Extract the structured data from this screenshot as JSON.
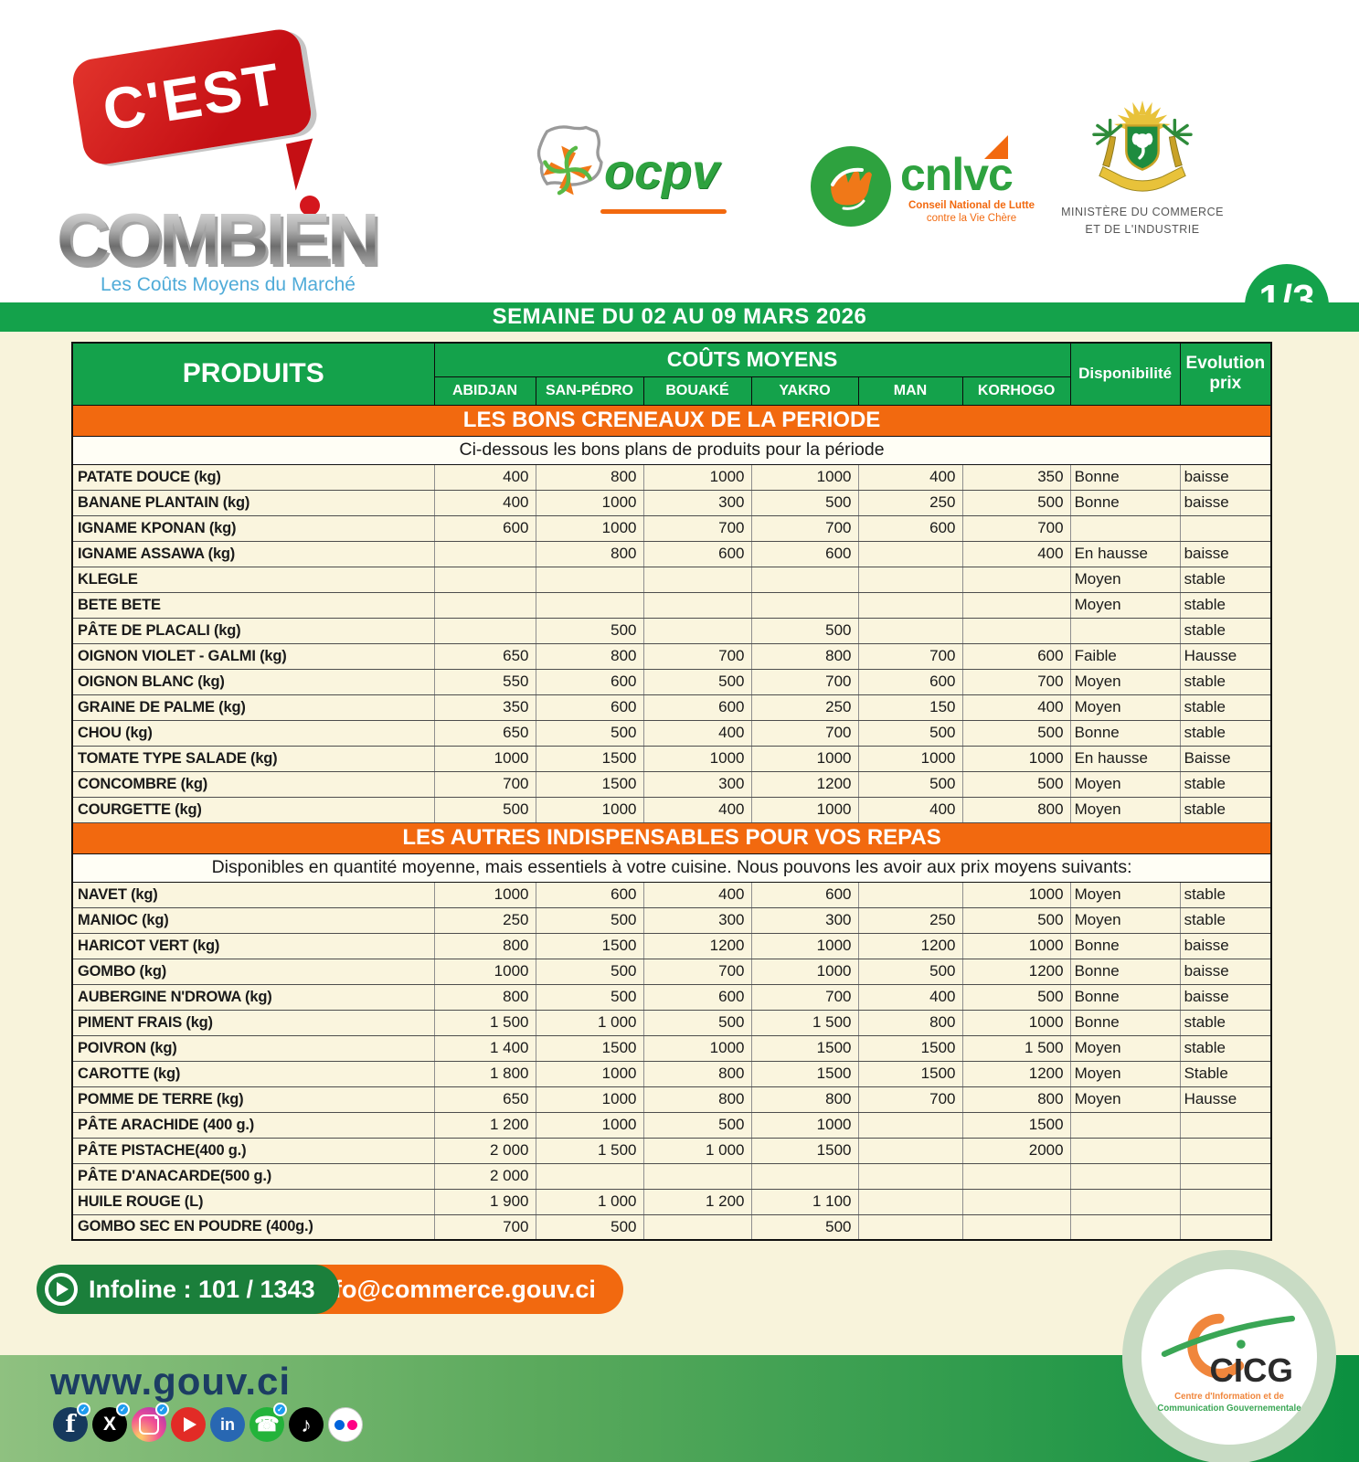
{
  "header": {
    "logo": {
      "bubble": "C'EST",
      "word": "COMBIEN",
      "subtitle": "Les Coûts Moyens du Marché"
    },
    "ocpv_label": "ocpv",
    "cnlvc": {
      "label": "cnlvc",
      "sub1": "Conseil National de Lutte",
      "sub2": "contre la Vie Chère"
    },
    "ministry": {
      "line1": "MINISTÈRE DU  COMMERCE",
      "line2": "ET DE L'INDUSTRIE"
    },
    "page_badge": "1/3",
    "week_banner": "SEMAINE DU 02 AU 09 MARS 2026"
  },
  "table": {
    "products_header": "PRODUITS",
    "costs_header": "COÛTS MOYENS",
    "cities": [
      "ABIDJAN",
      "SAN-PÉDRO",
      "BOUAKÉ",
      "YAKRO",
      "MAN",
      "KORHOGO"
    ],
    "availability_header": "Disponibilité",
    "evolution_header_line1": "Evolution",
    "evolution_header_line2": "prix",
    "sections": [
      {
        "title": "LES BONS CRENEAUX DE LA PERIODE",
        "subtitle": "Ci-dessous les bons plans de produits pour la période",
        "rows": [
          {
            "product": "PATATE DOUCE (kg)",
            "prices": [
              "400",
              "800",
              "1000",
              "1000",
              "400",
              "350"
            ],
            "availability": "Bonne",
            "evolution": "baisse"
          },
          {
            "product": "BANANE PLANTAIN (kg)",
            "prices": [
              "400",
              "1000",
              "300",
              "500",
              "250",
              "500"
            ],
            "availability": "Bonne",
            "evolution": "baisse"
          },
          {
            "product": "IGNAME KPONAN  (kg)",
            "prices": [
              "600",
              "1000",
              "700",
              "700",
              "600",
              "700"
            ],
            "availability": "",
            "evolution": ""
          },
          {
            "product": "IGNAME ASSAWA (kg)",
            "prices": [
              "",
              "800",
              "600",
              "600",
              "",
              "400"
            ],
            "availability": "En hausse",
            "evolution": "baisse"
          },
          {
            "product": "KLEGLE",
            "prices": [
              "",
              "",
              "",
              "",
              "",
              ""
            ],
            "availability": "Moyen",
            "evolution": "stable"
          },
          {
            "product": "BETE BETE",
            "prices": [
              "",
              "",
              "",
              "",
              "",
              ""
            ],
            "availability": "Moyen",
            "evolution": "stable"
          },
          {
            "product": "PÂTE DE PLACALI (kg)",
            "prices": [
              "",
              "500",
              "",
              "500",
              "",
              ""
            ],
            "availability": "",
            "evolution": "stable"
          },
          {
            "product": "OIGNON VIOLET - GALMI (kg)",
            "prices": [
              {
                "v": "650",
                "c": "green"
              },
              {
                "v": "800",
                "c": "green"
              },
              {
                "v": "700",
                "c": "red"
              },
              {
                "v": "800",
                "c": "red"
              },
              {
                "v": "700",
                "c": "red"
              },
              "600"
            ],
            "availability": "Faible",
            "evolution": "Hausse"
          },
          {
            "product": "OIGNON BLANC  (kg)",
            "prices": [
              {
                "v": "550",
                "c": "green"
              },
              "600",
              "500",
              "700",
              "600",
              "700"
            ],
            "availability": "Moyen",
            "evolution": "stable"
          },
          {
            "product": "GRAINE DE PALME  (kg)",
            "prices": [
              "350",
              {
                "v": "600",
                "c": "red"
              },
              {
                "v": "600",
                "c": "red"
              },
              "250",
              "150",
              "400"
            ],
            "availability": "Moyen",
            "evolution": "stable"
          },
          {
            "product": "CHOU (kg)",
            "prices": [
              "650",
              "500",
              "400",
              "700",
              "500",
              "500"
            ],
            "availability": "Bonne",
            "evolution": "stable"
          },
          {
            "product": "TOMATE TYPE SALADE (kg)",
            "prices": [
              "1000",
              "1500",
              "1000",
              "1000",
              "1000",
              "1000"
            ],
            "availability": "En hausse",
            "evolution": "Baisse"
          },
          {
            "product": "CONCOMBRE (kg)",
            "prices": [
              "700",
              {
                "v": "1500",
                "c": "red"
              },
              "300",
              "1200",
              "500",
              "500"
            ],
            "availability": "Moyen",
            "evolution": "stable"
          },
          {
            "product": "COURGETTE (kg)",
            "prices": [
              "500",
              {
                "v": "1000",
                "c": "red"
              },
              "400",
              "1000",
              "400",
              "800"
            ],
            "availability": "Moyen",
            "evolution": "stable"
          }
        ]
      },
      {
        "title": "LES AUTRES INDISPENSABLES POUR VOS REPAS",
        "subtitle": "Disponibles en quantité moyenne, mais essentiels à votre cuisine. Nous pouvons les avoir aux prix moyens suivants:",
        "rows": [
          {
            "product": "NAVET (kg)",
            "prices": [
              "1000",
              {
                "v": "600",
                "c": "red"
              },
              "400",
              "600",
              "",
              "1000"
            ],
            "availability": "Moyen",
            "evolution": "stable"
          },
          {
            "product": "MANIOC (kg)",
            "prices": [
              "250",
              "500",
              "300",
              "300",
              {
                "v": "250",
                "c": "green"
              },
              "500"
            ],
            "availability": "Moyen",
            "evolution": "stable"
          },
          {
            "product": "HARICOT VERT (kg)",
            "prices": [
              "800",
              "1500",
              {
                "v": "1200",
                "c": "red"
              },
              "1000",
              "1200",
              "1000"
            ],
            "availability": "Bonne",
            "evolution": "baisse"
          },
          {
            "product": "GOMBO (kg)",
            "prices": [
              "1000",
              "500",
              "700",
              "1000",
              "500",
              "1200"
            ],
            "availability": "Bonne",
            "evolution": "baisse"
          },
          {
            "product": "AUBERGINE N'DROWA  (kg)",
            "prices": [
              "800",
              "500",
              "600",
              "700",
              "400",
              "500"
            ],
            "availability": "Bonne",
            "evolution": "baisse"
          },
          {
            "product": "PIMENT FRAIS (kg)",
            "prices": [
              "1 500",
              "1 000",
              "500",
              "1 500",
              "800",
              "1000"
            ],
            "availability": "Bonne",
            "evolution": "stable"
          },
          {
            "product": "POIVRON (kg)",
            "prices": [
              "1 400",
              {
                "v": "1500",
                "c": "green"
              },
              "1000",
              "1500",
              "1500",
              "1 500"
            ],
            "availability": "Moyen",
            "evolution": "stable"
          },
          {
            "product": "CAROTTE (kg)",
            "prices": [
              "1 800",
              {
                "v": "1000",
                "c": "green"
              },
              {
                "v": "800",
                "c": "red"
              },
              "1500",
              "1500",
              "1200"
            ],
            "availability": "Moyen",
            "evolution": "Stable"
          },
          {
            "product": "POMME DE TERRE (kg)",
            "prices": [
              "650",
              {
                "v": "1000",
                "c": "green"
              },
              "800",
              "800",
              "700",
              "800"
            ],
            "availability": "Moyen",
            "evolution": "Hausse"
          },
          {
            "product": "PÂTE ARACHIDE (400 g.)",
            "prices": [
              "1 200",
              "1000",
              "500",
              "1000",
              "",
              "1500"
            ],
            "availability": "",
            "evolution": ""
          },
          {
            "product": "PÂTE PISTACHE(400 g.)",
            "prices": [
              "2 000",
              "1 500",
              "1 000",
              "1500",
              "",
              "2000"
            ],
            "availability": "",
            "evolution": ""
          },
          {
            "product": "PÂTE D'ANACARDE(500 g.)",
            "prices": [
              "2 000",
              "",
              "",
              "",
              "",
              ""
            ],
            "availability": "",
            "evolution": ""
          },
          {
            "product": "HUILE ROUGE (L)",
            "prices": [
              "1 900",
              "1 000",
              "1 200",
              "1 100",
              "",
              ""
            ],
            "availability": "",
            "evolution": ""
          },
          {
            "product": "GOMBO SEC EN POUDRE (400g.)",
            "prices": [
              "700",
              "500",
              "",
              "500",
              "",
              ""
            ],
            "availability": "",
            "evolution": ""
          }
        ]
      }
    ]
  },
  "footer": {
    "infoline": "Infoline : 101 / 1343",
    "email": "info@commerce.gouv.ci",
    "website": "www.gouv.ci",
    "social": [
      {
        "name": "facebook",
        "verified": true
      },
      {
        "name": "x",
        "verified": true
      },
      {
        "name": "instagram",
        "verified": true
      },
      {
        "name": "youtube",
        "verified": false
      },
      {
        "name": "linkedin",
        "verified": false
      },
      {
        "name": "whatsapp",
        "verified": true
      },
      {
        "name": "tiktok",
        "verified": false
      },
      {
        "name": "flickr",
        "verified": false
      }
    ],
    "cicg": {
      "label": "CICG",
      "line1": "Centre d'Information et de",
      "line2": "Communication Gouvernementale"
    }
  },
  "colors": {
    "brand_green": "#14a24b",
    "brand_orange": "#f2690f",
    "cream": "#f8f3db",
    "value_green": "#00a651",
    "value_red": "#fe0000",
    "navy": "#1c3d63"
  }
}
